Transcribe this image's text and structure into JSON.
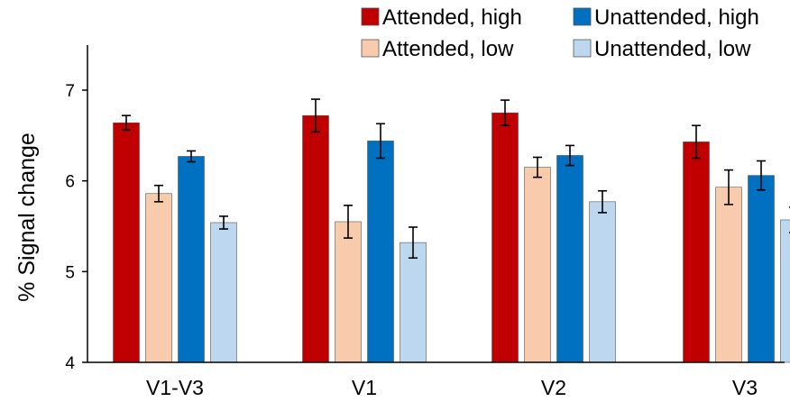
{
  "chart_data": {
    "type": "bar",
    "title": "",
    "xlabel": "",
    "ylabel": "% Signal change",
    "ylim": [
      4,
      7.5
    ],
    "yticks": [
      4,
      5,
      6,
      7
    ],
    "ytick_labels": [
      "4",
      "5",
      "6",
      "7"
    ],
    "grid": false,
    "legend_position": "top-right",
    "categories": [
      "V1-V3",
      "V1",
      "V2",
      "V3"
    ],
    "series": [
      {
        "name": "Attended, high",
        "color": "#c00000",
        "values": [
          6.64,
          6.72,
          6.75,
          6.43
        ],
        "errors": [
          0.08,
          0.18,
          0.14,
          0.18
        ]
      },
      {
        "name": "Attended, low",
        "color": "#f8cbad",
        "values": [
          5.86,
          5.55,
          6.15,
          5.93
        ],
        "errors": [
          0.09,
          0.18,
          0.11,
          0.19
        ]
      },
      {
        "name": "Unattended, high",
        "color": "#0070c0",
        "values": [
          6.27,
          6.44,
          6.28,
          6.06
        ],
        "errors": [
          0.06,
          0.19,
          0.11,
          0.16
        ]
      },
      {
        "name": "Unattended, low",
        "color": "#bdd7ee",
        "values": [
          5.54,
          5.32,
          5.77,
          5.57
        ],
        "errors": [
          0.07,
          0.17,
          0.12,
          0.14
        ]
      }
    ]
  }
}
